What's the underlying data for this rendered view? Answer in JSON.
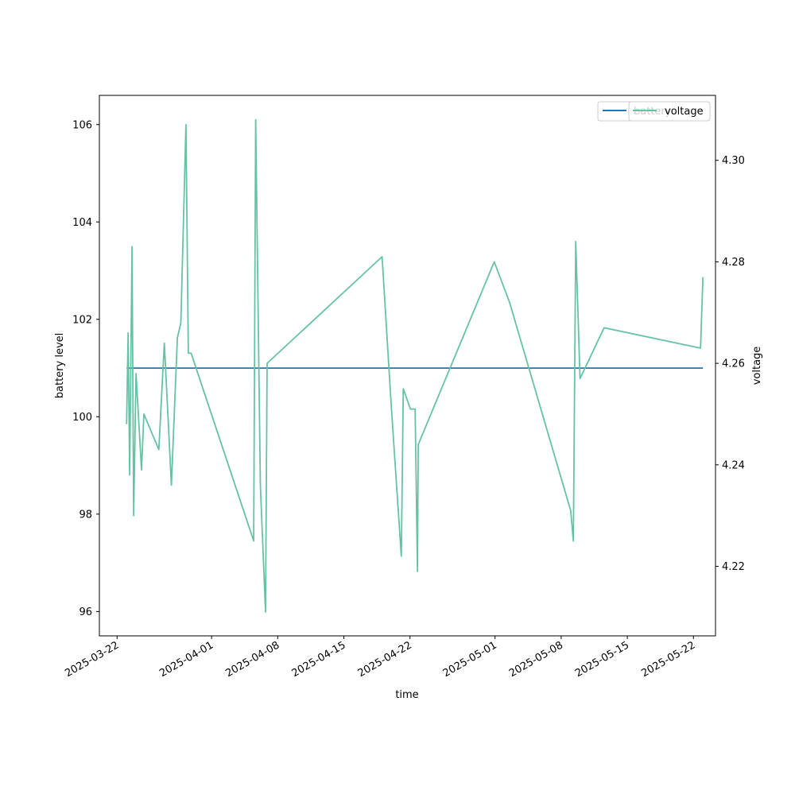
{
  "chart_data": {
    "type": "line",
    "xlabel": "time",
    "ylabel_left": "battery level",
    "ylabel_right": "voltage",
    "x_ticks": [
      "2025-03-22",
      "2025-04-01",
      "2025-04-08",
      "2025-04-15",
      "2025-04-22",
      "2025-05-01",
      "2025-05-08",
      "2025-05-15",
      "2025-05-22"
    ],
    "y_left_ticks": [
      "96",
      "98",
      "100",
      "102",
      "104",
      "106"
    ],
    "y_right_ticks": [
      "4.22",
      "4.24",
      "4.26",
      "4.28",
      "4.30"
    ],
    "xlim": [
      "2025-03-20T03:00",
      "2025-05-24T08:00"
    ],
    "ylim_left": [
      95.5,
      106.6
    ],
    "ylim_right": [
      4.2063,
      4.3128
    ],
    "legend_placement": "top-right",
    "colors": {
      "battery": "#1f77b4",
      "voltage": "#66c2a5"
    },
    "series": [
      {
        "name": "battery",
        "axis": "left",
        "x": [
          "2025-03-23T00:00",
          "2025-05-23T00:00"
        ],
        "y": [
          101,
          101
        ]
      },
      {
        "name": "voltage",
        "axis": "right",
        "x": [
          "2025-03-23T00:00",
          "2025-03-23T04:00",
          "2025-03-23T08:00",
          "2025-03-23T14:00",
          "2025-03-23T18:00",
          "2025-03-24T00:00",
          "2025-03-24T14:00",
          "2025-03-24T20:00",
          "2025-03-26T10:00",
          "2025-03-27T00:00",
          "2025-03-27T18:00",
          "2025-03-28T09:00",
          "2025-03-28T18:00",
          "2025-03-29T07:00",
          "2025-03-29T13:00",
          "2025-03-29T20:00",
          "2025-04-05T11:00",
          "2025-04-05T16:00",
          "2025-04-06T04:00",
          "2025-04-06T17:00",
          "2025-04-06T21:00",
          "2025-04-19T01:00",
          "2025-04-20T01:00",
          "2025-04-21T02:00",
          "2025-04-21T07:00",
          "2025-04-22T01:00",
          "2025-04-22T13:00",
          "2025-04-22T19:00",
          "2025-04-22T21:00",
          "2025-04-30T22:00",
          "2025-05-02T13:00",
          "2025-05-09T00:00",
          "2025-05-09T07:00",
          "2025-05-09T13:00",
          "2025-05-10T00:00",
          "2025-05-12T13:00",
          "2025-05-22T18:00",
          "2025-05-23T00:00"
        ],
        "y": [
          4.248,
          4.266,
          4.238,
          4.283,
          4.23,
          4.258,
          4.239,
          4.25,
          4.243,
          4.264,
          4.236,
          4.265,
          4.268,
          4.307,
          4.262,
          4.262,
          4.225,
          4.308,
          4.236,
          4.211,
          4.26,
          4.281,
          4.251,
          4.222,
          4.255,
          4.251,
          4.251,
          4.219,
          4.244,
          4.28,
          4.272,
          4.231,
          4.225,
          4.284,
          4.257,
          4.267,
          4.263,
          4.277
        ]
      }
    ]
  }
}
